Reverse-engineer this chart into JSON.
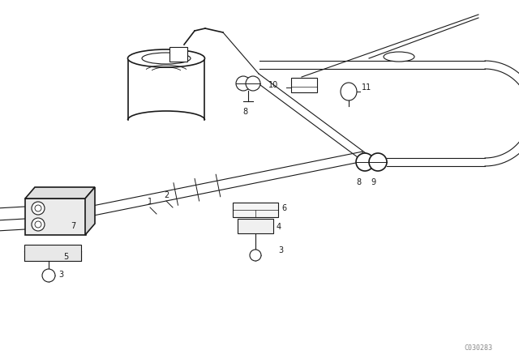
{
  "bg_color": "#ffffff",
  "lc": "#1a1a1a",
  "watermark": "C030283",
  "figsize": [
    6.4,
    4.48
  ],
  "dpi": 100,
  "xlim": [
    0,
    640
  ],
  "ylim": [
    0,
    448
  ]
}
